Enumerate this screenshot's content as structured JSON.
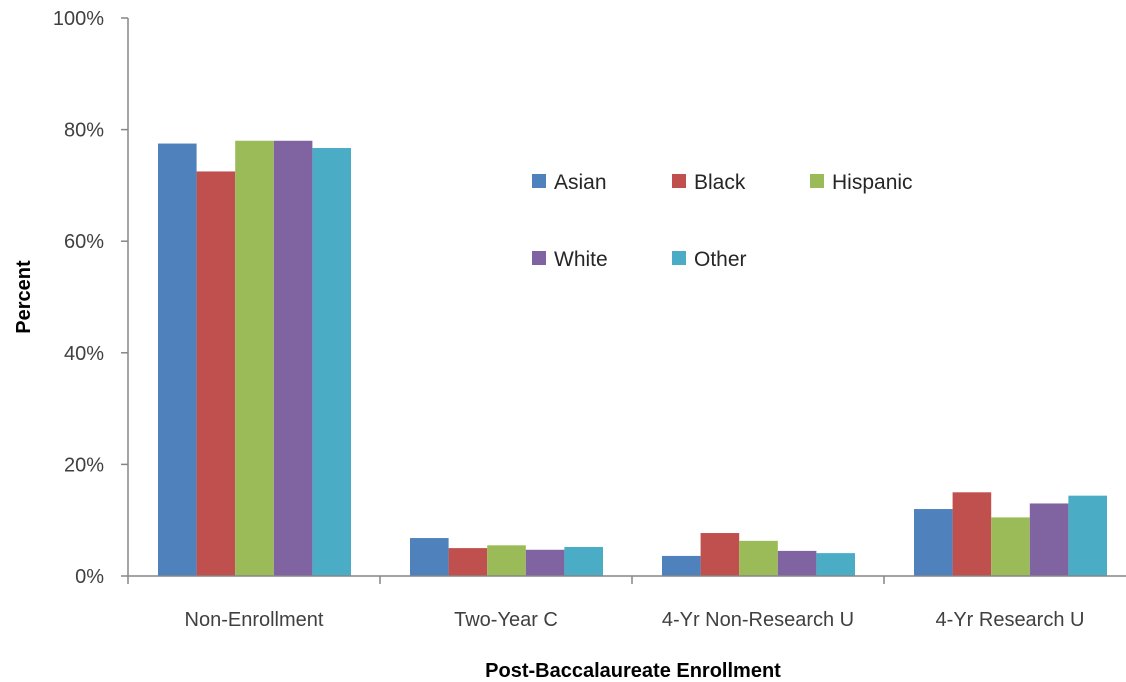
{
  "chart_data": {
    "type": "bar",
    "title": "",
    "xlabel": "Post-Baccalaureate Enrollment",
    "ylabel": "Percent",
    "ylim": [
      0,
      100
    ],
    "yticks": [
      0,
      20,
      40,
      60,
      80,
      100
    ],
    "ytick_labels": [
      "0%",
      "20%",
      "40%",
      "60%",
      "80%",
      "100%"
    ],
    "grid": false,
    "legend_position": "upper-middle",
    "categories": [
      "Non-Enrollment",
      "Two-Year C",
      "4-Yr Non-Research U",
      "4-Yr Research U"
    ],
    "series": [
      {
        "name": "Asian",
        "color": "#4f81bd",
        "values": [
          77.5,
          6.8,
          3.6,
          12.0
        ]
      },
      {
        "name": "Black",
        "color": "#c0504d",
        "values": [
          72.5,
          5.0,
          7.7,
          15.0
        ]
      },
      {
        "name": "Hispanic",
        "color": "#9bbb59",
        "values": [
          78.0,
          5.5,
          6.3,
          10.5
        ]
      },
      {
        "name": "White",
        "color": "#8064a2",
        "values": [
          78.0,
          4.7,
          4.5,
          13.0
        ]
      },
      {
        "name": "Other",
        "color": "#4bacc6",
        "values": [
          76.7,
          5.2,
          4.1,
          14.4
        ]
      }
    ]
  }
}
